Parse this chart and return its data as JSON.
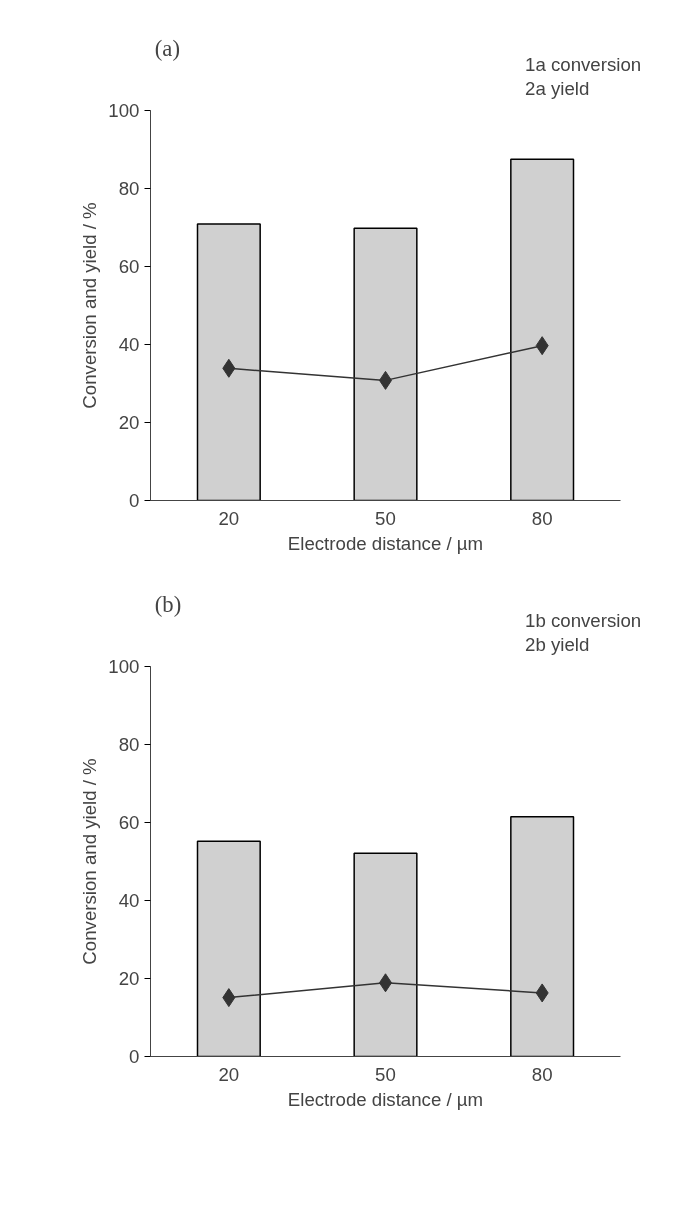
{
  "chart_data": [
    {
      "type": "bar",
      "title": "(a)",
      "xlabel": "Electrode distance / µm",
      "ylabel": "Conversion and yield / %",
      "categories": [
        "20",
        "50",
        "80"
      ],
      "ylim": [
        0,
        100
      ],
      "yticks": [
        0,
        20,
        40,
        60,
        80,
        100
      ],
      "grid": false,
      "legend": "top",
      "series": [
        {
          "name": "1a conversion",
          "color": "#d0d0d0",
          "values": [
            70.9,
            69.8,
            87.5
          ]
        },
        {
          "name": "2a yield",
          "type": "line",
          "color": "#333333",
          "marker": "diamond",
          "values": [
            33.9,
            30.8,
            39.7
          ]
        }
      ]
    },
    {
      "type": "bar",
      "title": "(b)",
      "xlabel": "Electrode distance / µm",
      "ylabel": "Conversion and yield / %",
      "categories": [
        "20",
        "50",
        "80"
      ],
      "ylim": [
        0,
        100
      ],
      "yticks": [
        0,
        20,
        40,
        60,
        80,
        100
      ],
      "grid": false,
      "legend": "top",
      "series": [
        {
          "name": "1b conversion",
          "color": "#d0d0d0",
          "values": [
            55.2,
            52.1,
            61.5
          ]
        },
        {
          "name": "2b yield",
          "type": "line",
          "color": "#333333",
          "marker": "diamond",
          "values": [
            15.1,
            18.9,
            16.3
          ]
        }
      ]
    }
  ]
}
